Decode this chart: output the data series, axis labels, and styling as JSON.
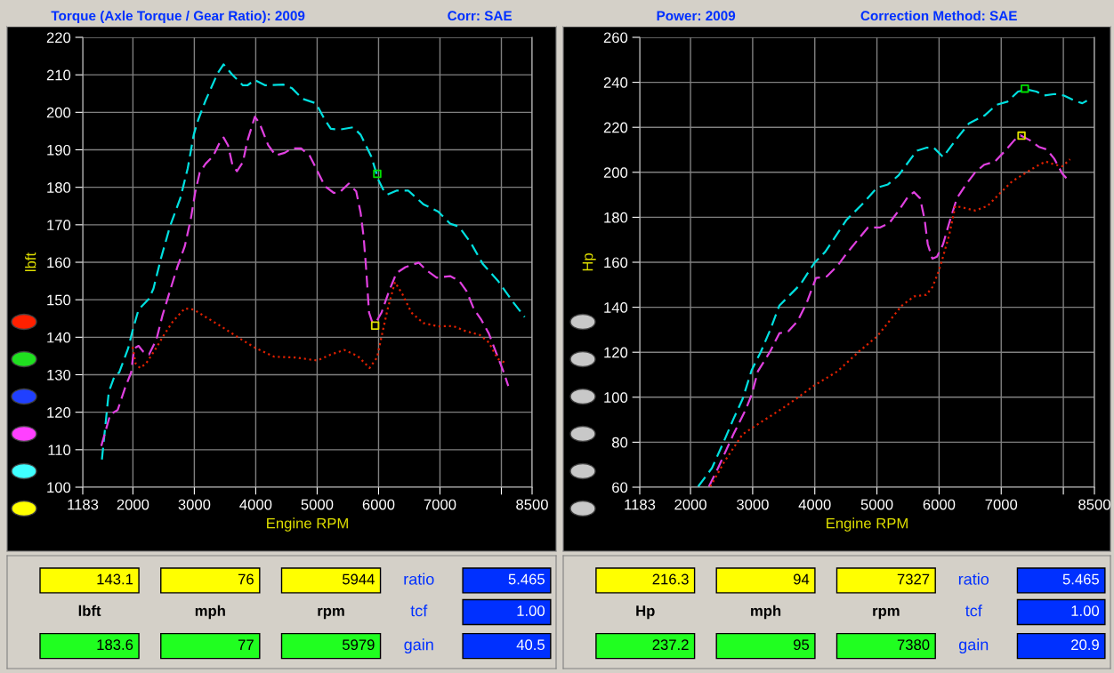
{
  "chart_data": [
    {
      "type": "line",
      "title": "Torque (Axle Torque / Gear Ratio): 2009",
      "subtitle": "Corr: SAE",
      "xlabel": "Engine RPM",
      "ylabel": "lbft",
      "xlim": [
        1183,
        8500
      ],
      "xticks": [
        1183,
        2000,
        3000,
        4000,
        5000,
        6000,
        7000,
        {
          "value": 8000,
          "label": null
        },
        8500
      ],
      "ylim": [
        100,
        220
      ],
      "yticks": [
        100,
        110,
        120,
        130,
        140,
        150,
        160,
        170,
        180,
        190,
        200,
        210,
        220
      ],
      "grid": true,
      "legend": false,
      "series": [
        {
          "color": "#00e0e0",
          "line_style": "dashed",
          "x": [
            1495,
            1607,
            1704,
            1777,
            1922,
            1995,
            2092,
            2262,
            2335,
            2456,
            2602,
            2772,
            2893,
            2990,
            3063,
            3184,
            3379,
            3476,
            3621,
            3791,
            3864,
            3985,
            4155,
            4447,
            4592,
            4762,
            4981,
            5126,
            5223,
            5369,
            5587,
            5709,
            5879,
            6000,
            6097,
            6146,
            6291,
            6485,
            6728,
            6971,
            7165,
            7311,
            7505,
            7699,
            7942,
            8184,
            8379
          ],
          "values": [
            107.4,
            125.4,
            129.8,
            130.6,
            137,
            141.8,
            147.4,
            150.3,
            153,
            161,
            169.5,
            177.1,
            185.1,
            194,
            198,
            203.2,
            210.4,
            212.8,
            210,
            207.2,
            207.2,
            208.6,
            207.2,
            207.4,
            206.4,
            203.6,
            202.4,
            198,
            195.6,
            195.4,
            196,
            194,
            188.3,
            181.9,
            178.7,
            178.1,
            179.1,
            179.1,
            175.5,
            173.5,
            170.3,
            169.5,
            165.1,
            159.5,
            155.1,
            149.5,
            145.4
          ]
        },
        {
          "color": "#e040e0",
          "line_style": "dashed",
          "x": [
            1485,
            1631,
            1752,
            1874,
            1971,
            2019,
            2092,
            2165,
            2262,
            2383,
            2481,
            2602,
            2723,
            2845,
            2942,
            3015,
            3087,
            3184,
            3306,
            3403,
            3476,
            3549,
            3621,
            3694,
            3791,
            3864,
            3985,
            4058,
            4204,
            4325,
            4471,
            4592,
            4738,
            4883,
            5005,
            5126,
            5272,
            5369,
            5515,
            5636,
            5709,
            5757,
            5796,
            5845,
            5893,
            5951,
            6049,
            6170,
            6291,
            6437,
            6655,
            6777,
            6947,
            7165,
            7311,
            7432,
            7553,
            7675,
            7796,
            7917,
            8039,
            8112
          ],
          "values": [
            111,
            119.4,
            120.6,
            126.6,
            130.6,
            137,
            137.7,
            136.2,
            135.4,
            139.4,
            145.8,
            152.3,
            158.7,
            164.3,
            171.5,
            178.7,
            183.9,
            186.3,
            188.3,
            191.6,
            193.3,
            191.2,
            185.9,
            184.3,
            186.7,
            192.4,
            198.8,
            197.2,
            191.2,
            188.5,
            189.2,
            190.4,
            190.4,
            188.3,
            184.3,
            180.3,
            178.5,
            178.7,
            181,
            178.9,
            173.1,
            166.7,
            158.7,
            146.6,
            144.2,
            143.8,
            146.6,
            152.3,
            157.1,
            158.7,
            159.9,
            157.9,
            155.9,
            156.3,
            155.1,
            152.3,
            147.5,
            144.6,
            141,
            135.8,
            130.6,
            127
          ]
        },
        {
          "color": "#e02000",
          "line_style": "dotted",
          "x": [
            1995,
            2044,
            2117,
            2214,
            2359,
            2505,
            2650,
            2845,
            2990,
            3184,
            3427,
            3767,
            4010,
            4301,
            4641,
            5005,
            5223,
            5442,
            5660,
            5854,
            5976,
            6049,
            6146,
            6267,
            6388,
            6534,
            6728,
            6971,
            7214,
            7408,
            7650,
            7796,
            7942,
            8087
          ],
          "values": [
            137.4,
            133,
            131.8,
            133,
            136.6,
            140.6,
            144.2,
            147.7,
            147.4,
            145.4,
            143,
            139.4,
            137,
            134.8,
            134.6,
            133.8,
            135.4,
            136.6,
            135,
            131.8,
            134.6,
            140.2,
            147.4,
            154.7,
            151.5,
            146.6,
            143.8,
            142.9,
            143,
            141.7,
            140.6,
            138.6,
            134.2,
            133
          ]
        },
        {
          "type": "scatter",
          "marker": "square",
          "color": "#e0e000",
          "x": [
            5944
          ],
          "values": [
            143.1
          ]
        },
        {
          "type": "scatter",
          "marker": "square",
          "color": "#00e000",
          "x": [
            5979
          ],
          "values": [
            183.6
          ]
        }
      ]
    },
    {
      "type": "line",
      "title": "Power: 2009",
      "subtitle": "Correction Method: SAE",
      "xlabel": "Engine RPM",
      "ylabel": "Hp",
      "xlim": [
        1183,
        8500
      ],
      "xticks": [
        1183,
        2000,
        3000,
        4000,
        5000,
        6000,
        7000,
        {
          "value": 8000,
          "label": null
        },
        8500
      ],
      "ylim": [
        60,
        260
      ],
      "yticks": [
        60,
        80,
        100,
        120,
        140,
        160,
        180,
        200,
        220,
        240,
        260
      ],
      "grid": true,
      "legend": false,
      "series": [
        {
          "color": "#00e0e0",
          "line_style": "dashed",
          "x": [
            2123,
            2345,
            2542,
            2690,
            2837,
            2985,
            3133,
            3281,
            3429,
            3576,
            3773,
            3995,
            4167,
            4315,
            4512,
            4759,
            5005,
            5177,
            5350,
            5547,
            5645,
            5793,
            5916,
            6064,
            6286,
            6483,
            6729,
            6926,
            7099,
            7271,
            7419,
            7567,
            7690,
            7862,
            8010,
            8182,
            8305,
            8379
          ],
          "values": [
            60.3,
            68.5,
            80.7,
            90.3,
            99.1,
            112.1,
            120.3,
            129.8,
            140.7,
            144.8,
            150.3,
            159.8,
            164.6,
            170.7,
            178.9,
            185.7,
            193.2,
            194.6,
            198.7,
            206.1,
            209.6,
            210.9,
            210.9,
            206.8,
            215,
            221.8,
            225.2,
            230,
            231.4,
            235.9,
            236.8,
            235.9,
            234.1,
            234.8,
            234.1,
            231.8,
            230.7,
            231.8
          ]
        },
        {
          "color": "#e040e0",
          "line_style": "dashed",
          "x": [
            2296,
            2443,
            2690,
            2887,
            2985,
            3084,
            3281,
            3429,
            3576,
            3724,
            3872,
            4019,
            4192,
            4365,
            4512,
            4734,
            4857,
            5054,
            5202,
            5350,
            5498,
            5596,
            5695,
            5768,
            5818,
            5892,
            5966,
            6064,
            6163,
            6286,
            6433,
            6581,
            6729,
            6901,
            7064,
            7212,
            7310,
            7458,
            7606,
            7729,
            7852,
            7985,
            8099
          ],
          "values": [
            60.3,
            68.5,
            83.5,
            94.4,
            101.2,
            111.5,
            120.3,
            128.4,
            129.4,
            133.9,
            142.1,
            153,
            153.7,
            158.4,
            163.9,
            171.4,
            175.5,
            175.5,
            177.5,
            183,
            189.1,
            191.2,
            188.4,
            178.9,
            168,
            161.6,
            162.5,
            168,
            177.5,
            188.4,
            194.6,
            200,
            203.4,
            204.8,
            209.6,
            214.3,
            216.4,
            214.3,
            211.3,
            210.2,
            206.1,
            199.3,
            195.9
          ]
        },
        {
          "color": "#e02000",
          "line_style": "dotted",
          "x": [
            2320,
            2542,
            2837,
            3133,
            3478,
            3724,
            3995,
            4365,
            4709,
            5005,
            5202,
            5399,
            5596,
            5793,
            5892,
            5990,
            6064,
            6163,
            6261,
            6384,
            6581,
            6778,
            6975,
            7172,
            7369,
            7567,
            7714,
            7862,
            7985,
            8108
          ],
          "values": [
            60.3,
            71.2,
            83.5,
            88.9,
            95,
            99.8,
            105.3,
            111.5,
            120.3,
            127.1,
            133.9,
            140.7,
            144.8,
            145.5,
            148.9,
            155.7,
            162.5,
            172.1,
            185,
            184.3,
            183,
            185,
            190.5,
            195.9,
            199.3,
            202.7,
            204.8,
            203.4,
            202.7,
            205.8
          ]
        },
        {
          "type": "scatter",
          "marker": "square",
          "color": "#e0e000",
          "x": [
            7327
          ],
          "values": [
            216.3
          ]
        },
        {
          "type": "scatter",
          "marker": "square",
          "color": "#00e000",
          "x": [
            7380
          ],
          "values": [
            237.2
          ]
        }
      ]
    },
    {
      "type": "other",
      "annotations": [
        "143.1",
        "76",
        "5944",
        "ratio",
        "5.465",
        "lbft",
        "mph",
        "rpm",
        "tcf",
        "1.00",
        "183.6",
        "77",
        "5979",
        "gain",
        "40.5"
      ]
    },
    {
      "type": "other",
      "annotations": [
        "216.3",
        "94",
        "7327",
        "ratio",
        "5.465",
        "Hp",
        "mph",
        "rpm",
        "tcf",
        "1.00",
        "237.2",
        "95",
        "7380",
        "gain",
        "20.9"
      ]
    }
  ]
}
